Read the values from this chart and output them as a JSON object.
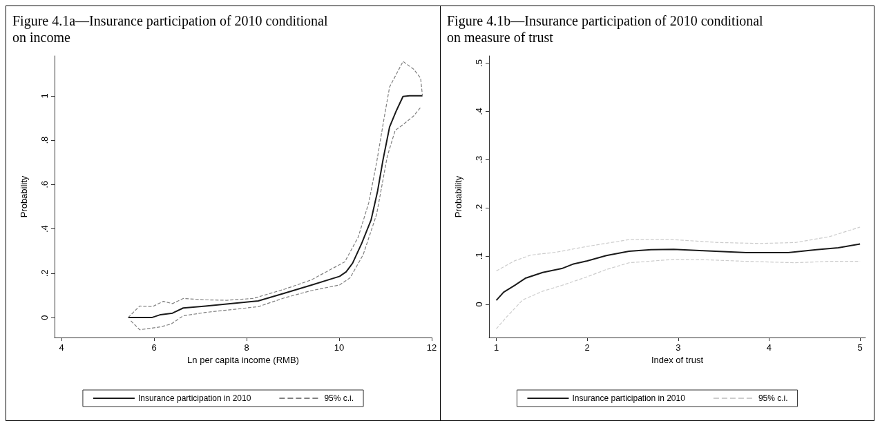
{
  "chart_data": [
    {
      "type": "line",
      "title": "Figure 4.1a—Insurance participation of 2010 conditional on income",
      "xlabel": "Ln per capita income (RMB)",
      "ylabel": "Probability",
      "xlim": [
        3.85,
        12
      ],
      "xticks": [
        4,
        6,
        8,
        10,
        12
      ],
      "ylim": [
        -0.09,
        1.18
      ],
      "yticks": [
        {
          "value": 0,
          "label": "0"
        },
        {
          "value": 0.2,
          "label": ".2"
        },
        {
          "value": 0.4,
          "label": ".4"
        },
        {
          "value": 0.6,
          "label": ".6"
        },
        {
          "value": 0.8,
          "label": ".8"
        },
        {
          "value": 1,
          "label": "1"
        }
      ],
      "grid": false,
      "legend": "bottom",
      "marker": "none",
      "series": [
        {
          "name": "Insurance participation in 2010",
          "color": "#1a1a1a",
          "line_style": "solid",
          "x": [
            5.44,
            5.95,
            6.14,
            6.4,
            6.63,
            7.11,
            7.68,
            8.25,
            8.82,
            9.39,
            10.01,
            10.15,
            10.29,
            10.49,
            10.69,
            10.83,
            10.95,
            11.09,
            11.24,
            11.38,
            11.52,
            11.8
          ],
          "values": [
            0,
            0,
            0.013,
            0.02,
            0.043,
            0.052,
            0.063,
            0.075,
            0.11,
            0.146,
            0.186,
            0.206,
            0.245,
            0.336,
            0.44,
            0.57,
            0.714,
            0.86,
            0.935,
            0.997,
            1,
            1
          ]
        },
        {
          "name": "95% c.i.",
          "color": "#808080",
          "line_style": "dashed",
          "x": [
            5.44,
            5.69,
            5.97,
            6.2,
            6.4,
            6.63,
            7.11,
            7.57,
            8.14,
            8.82,
            9.39,
            10.12,
            10.41,
            10.64,
            10.81,
            10.98,
            11.09,
            11.38,
            11.61,
            11.76,
            11.8
          ],
          "values": [
            0,
            0.052,
            0.05,
            0.073,
            0.063,
            0.086,
            0.08,
            0.078,
            0.086,
            0.128,
            0.169,
            0.251,
            0.362,
            0.518,
            0.7,
            0.91,
            1.04,
            1.155,
            1.12,
            1.08,
            1
          ]
        },
        {
          "color": "#808080",
          "line_style": "dashed",
          "x": [
            5.5,
            5.69,
            6.14,
            6.37,
            6.63,
            7.11,
            7.68,
            8.25,
            8.82,
            9.39,
            10.01,
            10.24,
            10.52,
            10.81,
            11.04,
            11.21,
            11.38,
            11.61,
            11.76
          ],
          "values": [
            -0.015,
            -0.055,
            -0.042,
            -0.029,
            0.008,
            0.023,
            0.036,
            0.049,
            0.089,
            0.121,
            0.147,
            0.18,
            0.284,
            0.466,
            0.727,
            0.844,
            0.87,
            0.909,
            0.948
          ]
        }
      ]
    },
    {
      "type": "line",
      "title": "Figure 4.1b—Insurance participation of 2010 conditional on measure of trust",
      "xlabel": "Index of trust",
      "ylabel": "Probability",
      "xlim": [
        0.92,
        5.06
      ],
      "xticks": [
        1,
        2,
        3,
        4,
        5
      ],
      "ylim": [
        -0.069,
        0.515
      ],
      "yticks": [
        {
          "value": 0,
          "label": "0"
        },
        {
          "value": 0.1,
          "label": ".1"
        },
        {
          "value": 0.2,
          "label": ".2"
        },
        {
          "value": 0.3,
          "label": ".3"
        },
        {
          "value": 0.4,
          "label": ".4"
        },
        {
          "value": 0.5,
          "label": ".5"
        }
      ],
      "grid": false,
      "legend": "bottom",
      "marker": "none",
      "series": [
        {
          "name": "Insurance participation in 2010",
          "color": "#1a1a1a",
          "line_style": "solid",
          "x": [
            1,
            1.08,
            1.2,
            1.32,
            1.51,
            1.72,
            1.84,
            2,
            2.21,
            2.46,
            2.7,
            2.95,
            3.28,
            3.75,
            4.21,
            4.52,
            4.76,
            5
          ],
          "values": [
            0.008,
            0.025,
            0.039,
            0.054,
            0.066,
            0.074,
            0.083,
            0.09,
            0.101,
            0.11,
            0.113,
            0.114,
            0.111,
            0.107,
            0.107,
            0.113,
            0.117,
            0.125
          ]
        },
        {
          "name": "95% c.i.",
          "color": "#cccccc",
          "line_style": "dashed",
          "x": [
            1,
            1.2,
            1.38,
            1.66,
            2,
            2.46,
            2.95,
            3.44,
            3.9,
            4.29,
            4.66,
            5
          ],
          "values": [
            0.069,
            0.09,
            0.102,
            0.108,
            0.12,
            0.134,
            0.134,
            0.128,
            0.126,
            0.128,
            0.14,
            0.16
          ]
        },
        {
          "color": "#cccccc",
          "line_style": "dashed",
          "x": [
            1,
            1.11,
            1.29,
            1.51,
            1.72,
            2,
            2.21,
            2.46,
            2.95,
            3.32,
            3.75,
            4.29,
            4.66,
            5
          ],
          "values": [
            -0.051,
            -0.027,
            0.009,
            0.027,
            0.039,
            0.057,
            0.072,
            0.086,
            0.093,
            0.092,
            0.089,
            0.086,
            0.089,
            0.089
          ]
        }
      ]
    }
  ]
}
